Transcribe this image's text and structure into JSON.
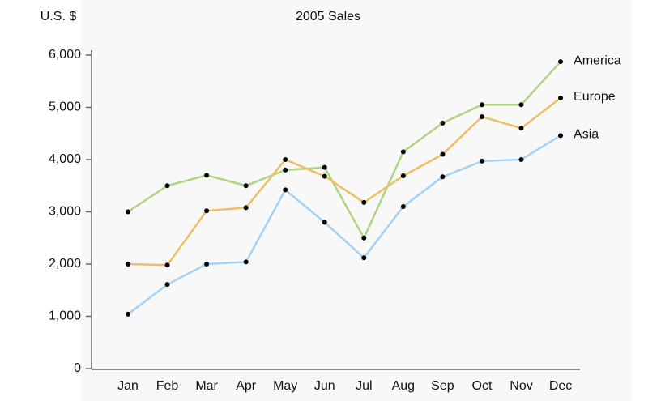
{
  "chart_data": {
    "type": "line",
    "title": "2005 Sales",
    "y_label": "U.S. $",
    "categories": [
      "Jan",
      "Feb",
      "Mar",
      "Apr",
      "May",
      "Jun",
      "Jul",
      "Aug",
      "Sep",
      "Oct",
      "Nov",
      "Dec"
    ],
    "series": [
      {
        "name": "America",
        "color": "#aed484",
        "values": [
          3000,
          3500,
          3700,
          3500,
          3800,
          3850,
          2500,
          4150,
          4700,
          5050,
          5050,
          5875
        ]
      },
      {
        "name": "Europe",
        "color": "#efbe63",
        "values": [
          2000,
          1980,
          3020,
          3080,
          4000,
          3680,
          3180,
          3690,
          4100,
          4820,
          4600,
          5180
        ]
      },
      {
        "name": "Asia",
        "color": "#a3d2f5",
        "values": [
          1040,
          1610,
          2000,
          2040,
          3420,
          2800,
          2120,
          3100,
          3670,
          3970,
          4000,
          4460
        ]
      }
    ],
    "ylim": [
      0,
      6000
    ],
    "yticks": [
      0,
      {
        "value": 1000,
        "label": "1,000"
      },
      {
        "value": 2000,
        "label": "2,000"
      },
      {
        "value": 3000,
        "label": "3,000"
      },
      {
        "value": 4000,
        "label": "4,000"
      },
      {
        "value": 5000,
        "label": "5,000"
      },
      {
        "value": 6000,
        "label": "6,000"
      }
    ],
    "grid": false
  }
}
